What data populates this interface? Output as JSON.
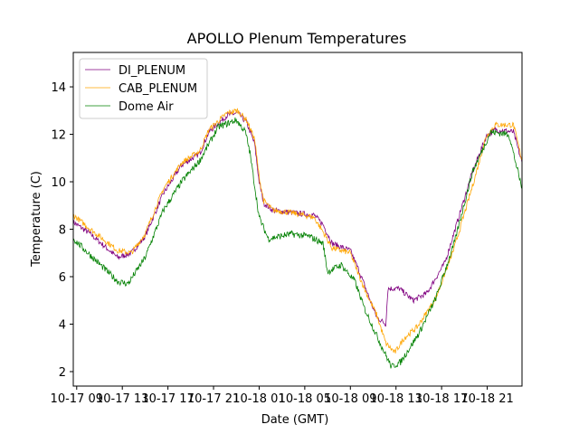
{
  "chart_data": {
    "type": "line",
    "title": "APOLLO Plenum Temperatures",
    "xlabel": "Date (GMT)",
    "ylabel": "Temperature (C)",
    "x_units": "hours since 10-17 00:00 GMT",
    "xlim": [
      8.7,
      48.05
    ],
    "ylim": [
      1.39,
      15.45
    ],
    "xticks": [
      9,
      13,
      17,
      21,
      25,
      29,
      33,
      37,
      41,
      45
    ],
    "xtick_labels": [
      "10-17 09",
      "10-17 13",
      "10-17 17",
      "10-17 21",
      "10-18 01",
      "10-18 05",
      "10-18 09",
      "10-18 13",
      "10-18 17",
      "10-18 21"
    ],
    "yticks": [
      2,
      4,
      6,
      8,
      10,
      12,
      14
    ],
    "ytick_labels": [
      "2",
      "4",
      "6",
      "8",
      "10",
      "12",
      "14"
    ],
    "grid": false,
    "legend_position": "top-left",
    "series": [
      {
        "name": "DI_PLENUM",
        "color": "#800080",
        "x": [
          8.7,
          10.2,
          12.6,
          13.8,
          15.0,
          16.6,
          18.2,
          19.8,
          20.6,
          22.2,
          23.1,
          23.9,
          24.6,
          25.0,
          25.4,
          26.2,
          27.8,
          29.8,
          30.6,
          31.4,
          33.0,
          33.8,
          34.5,
          35.3,
          36.1,
          36.3,
          37.3,
          38.5,
          39.7,
          41.3,
          42.5,
          43.7,
          44.9,
          45.7,
          47.3,
          47.7,
          48.05
        ],
        "y": [
          8.3,
          7.8,
          6.8,
          7.0,
          7.7,
          9.5,
          10.7,
          11.2,
          12.1,
          12.8,
          12.9,
          12.5,
          11.6,
          10.0,
          9.1,
          8.8,
          8.7,
          8.6,
          8.2,
          7.4,
          7.1,
          6.2,
          5.3,
          4.3,
          4.0,
          5.5,
          5.5,
          5.0,
          5.3,
          6.6,
          8.5,
          10.4,
          11.9,
          12.2,
          12.1,
          11.4,
          10.8
        ]
      },
      {
        "name": "CAB_PLENUM",
        "color": "#FFA500",
        "x": [
          8.7,
          10.2,
          12.6,
          13.8,
          15.0,
          16.6,
          18.2,
          19.8,
          20.6,
          22.2,
          23.1,
          23.9,
          24.6,
          25.0,
          25.4,
          26.2,
          27.8,
          29.8,
          30.6,
          31.4,
          33.0,
          33.8,
          34.5,
          35.3,
          36.1,
          36.9,
          37.7,
          38.9,
          40.5,
          42.1,
          43.7,
          44.9,
          45.7,
          47.3,
          47.7,
          48.05
        ],
        "y": [
          8.6,
          8.0,
          7.1,
          7.0,
          7.8,
          9.7,
          10.8,
          11.3,
          12.2,
          12.9,
          13.0,
          12.6,
          11.8,
          10.2,
          9.2,
          8.8,
          8.7,
          8.5,
          7.9,
          7.2,
          7.0,
          6.0,
          5.2,
          4.4,
          3.2,
          2.8,
          3.4,
          3.9,
          5.1,
          7.2,
          9.8,
          11.9,
          12.4,
          12.4,
          11.6,
          10.9
        ]
      },
      {
        "name": "Dome Air",
        "color": "#008000",
        "x": [
          8.7,
          10.2,
          12.6,
          13.5,
          15.0,
          16.6,
          18.2,
          19.8,
          21.4,
          23.0,
          23.8,
          24.2,
          25.0,
          25.8,
          27.8,
          29.4,
          30.6,
          31.0,
          32.2,
          33.4,
          34.2,
          35.8,
          36.6,
          37.4,
          39.0,
          40.5,
          42.1,
          43.7,
          45.3,
          46.9,
          47.5,
          48.05
        ],
        "y": [
          7.6,
          6.9,
          5.8,
          5.7,
          6.8,
          8.8,
          10.0,
          10.9,
          12.3,
          12.6,
          12.1,
          11.2,
          8.5,
          7.6,
          7.8,
          7.7,
          7.4,
          6.2,
          6.5,
          5.8,
          4.7,
          3.0,
          2.2,
          2.4,
          3.6,
          5.1,
          7.4,
          10.4,
          12.1,
          12.0,
          10.8,
          9.7
        ]
      }
    ]
  }
}
